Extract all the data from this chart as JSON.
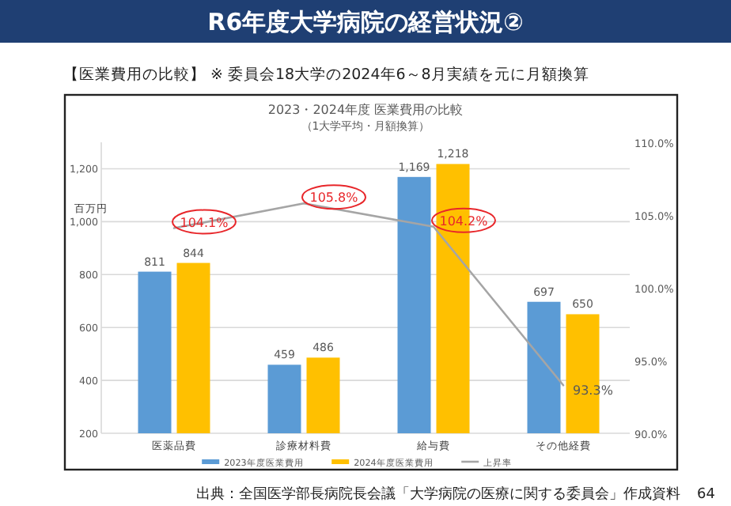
{
  "chart_data": {
    "type": "bar",
    "title": "2023・2024年度 医業費用の比較",
    "subtitle": "（1大学平均・月額換算）",
    "ylabel": "百万円",
    "annotations": [
      "R6年度大学病院の経営状況②",
      "【医業費用の比較】 ※ 委員会18大学の2024年6～8月実績を元に月額換算",
      "出典：全国医学部長病院長会議「大学病院の医療に関する委員会」作成資料",
      "64"
    ],
    "categories": [
      "医薬品費",
      "診療材料費",
      "給与費",
      "その他経費"
    ],
    "series": [
      {
        "name": "2023年度医業費用",
        "color": "#5b9bd5",
        "values": [
          811,
          459,
          1169,
          697
        ],
        "value_labels": [
          "811",
          "459",
          "1,169",
          "697"
        ]
      },
      {
        "name": "2024年度医業費用",
        "color": "#ffc000",
        "values": [
          844,
          486,
          1218,
          650
        ],
        "value_labels": [
          "844",
          "486",
          "1,218",
          "650"
        ]
      },
      {
        "name": "上昇率",
        "type": "line",
        "axis": "y2",
        "color": "#a5a5a5",
        "values": [
          104.1,
          105.8,
          104.2,
          93.3
        ],
        "value_labels": [
          "104.1%",
          "105.8%",
          "104.2%",
          "93.3%"
        ]
      }
    ],
    "ylim": [
      200,
      1300
    ],
    "yticks": [
      {
        "value": 200,
        "label": "200"
      },
      {
        "value": 400,
        "label": "400"
      },
      {
        "value": 600,
        "label": "600"
      },
      {
        "value": 800,
        "label": "800"
      },
      {
        "value": 1000,
        "label": "1,000"
      },
      {
        "value": 1200,
        "label": "1,200"
      }
    ],
    "y2lim": [
      90,
      110
    ],
    "y2ticks": [
      {
        "value": 90,
        "label": "90.0%"
      },
      {
        "value": 95,
        "label": "95.0%"
      },
      {
        "value": 100,
        "label": "100.0%"
      },
      {
        "value": 105,
        "label": "105.0%"
      },
      {
        "value": 110,
        "label": "110.0%"
      }
    ],
    "grid": "y",
    "legend": "bottom"
  }
}
